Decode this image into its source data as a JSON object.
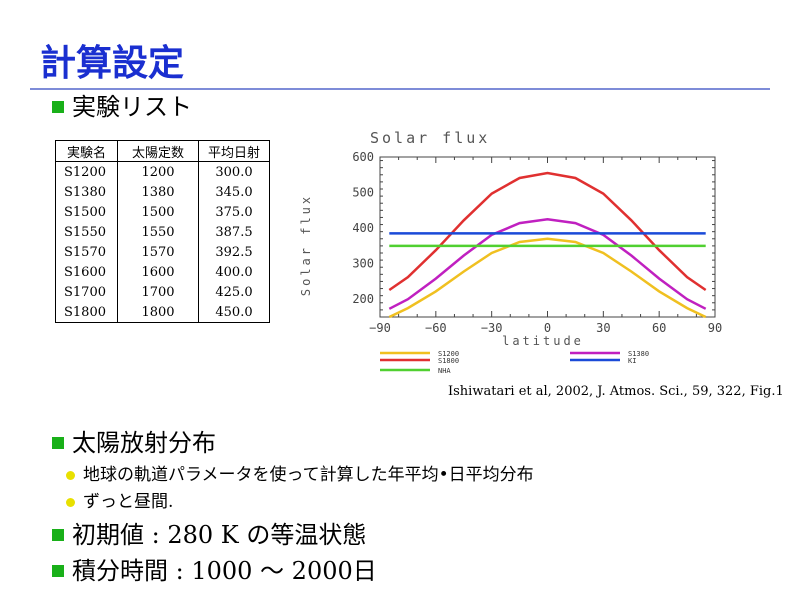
{
  "slide": {
    "title": "計算設定",
    "section_experiments": "実験リスト",
    "section_solar": "太陽放射分布",
    "solar_sub1": "地球の軌道パラメータを使って計算した年平均•日平均分布",
    "solar_sub2": "ずっと昼間.",
    "initial_value": "初期値 : 280 K の等温状態",
    "integration_time": "積分時間 : 1000 〜 2000日",
    "citation": "Ishiwatari et al, 2002, J. Atmos. Sci., 59, 322, Fig.1",
    "colors": {
      "title": "#1a2fd0",
      "bullet": "#19b019",
      "sub_bullet": "#e8e000"
    }
  },
  "table": {
    "headers": [
      "実験名",
      "太陽定数",
      "平均日射"
    ],
    "rows": [
      [
        "S1200",
        "1200",
        "300.0"
      ],
      [
        "S1380",
        "1380",
        "345.0"
      ],
      [
        "S1500",
        "1500",
        "375.0"
      ],
      [
        "S1550",
        "1550",
        "387.5"
      ],
      [
        "S1570",
        "1570",
        "392.5"
      ],
      [
        "S1600",
        "1600",
        "400.0"
      ],
      [
        "S1700",
        "1700",
        "425.0"
      ],
      [
        "S1800",
        "1800",
        "450.0"
      ]
    ]
  },
  "chart_data": {
    "type": "line",
    "title": "Solar flux",
    "xlabel": "latitude",
    "ylabel": "Solar flux",
    "xlim": [
      -90,
      90
    ],
    "ylim": [
      150,
      600
    ],
    "xticks": [
      -90,
      -60,
      -30,
      0,
      30,
      60,
      90
    ],
    "yticks": [
      200,
      300,
      400,
      500,
      600
    ],
    "x": [
      -85,
      -75,
      -60,
      -45,
      -30,
      -15,
      0,
      15,
      30,
      45,
      60,
      75,
      85
    ],
    "series": [
      {
        "name": "S1200",
        "color": "#f0c020",
        "values": [
          150,
          175,
          222,
          278,
          330,
          361,
          370,
          361,
          330,
          278,
          222,
          175,
          150
        ]
      },
      {
        "name": "S1380",
        "color": "#c020c0",
        "values": [
          173,
          200,
          258,
          323,
          381,
          414,
          425,
          414,
          381,
          323,
          258,
          200,
          173
        ]
      },
      {
        "name": "S1800",
        "color": "#e03030",
        "values": [
          226,
          262,
          338,
          422,
          497,
          541,
          555,
          541,
          497,
          422,
          338,
          262,
          226
        ]
      },
      {
        "name": "KI",
        "color": "#1a4ad8",
        "values": [
          385,
          385,
          385,
          385,
          385,
          385,
          385,
          385,
          385,
          385,
          385,
          385,
          385
        ]
      },
      {
        "name": "NHA",
        "color": "#50d030",
        "values": [
          350,
          350,
          350,
          350,
          350,
          350,
          350,
          350,
          350,
          350,
          350,
          350,
          350
        ]
      }
    ],
    "legend_placement": "bottom",
    "grid": false
  }
}
